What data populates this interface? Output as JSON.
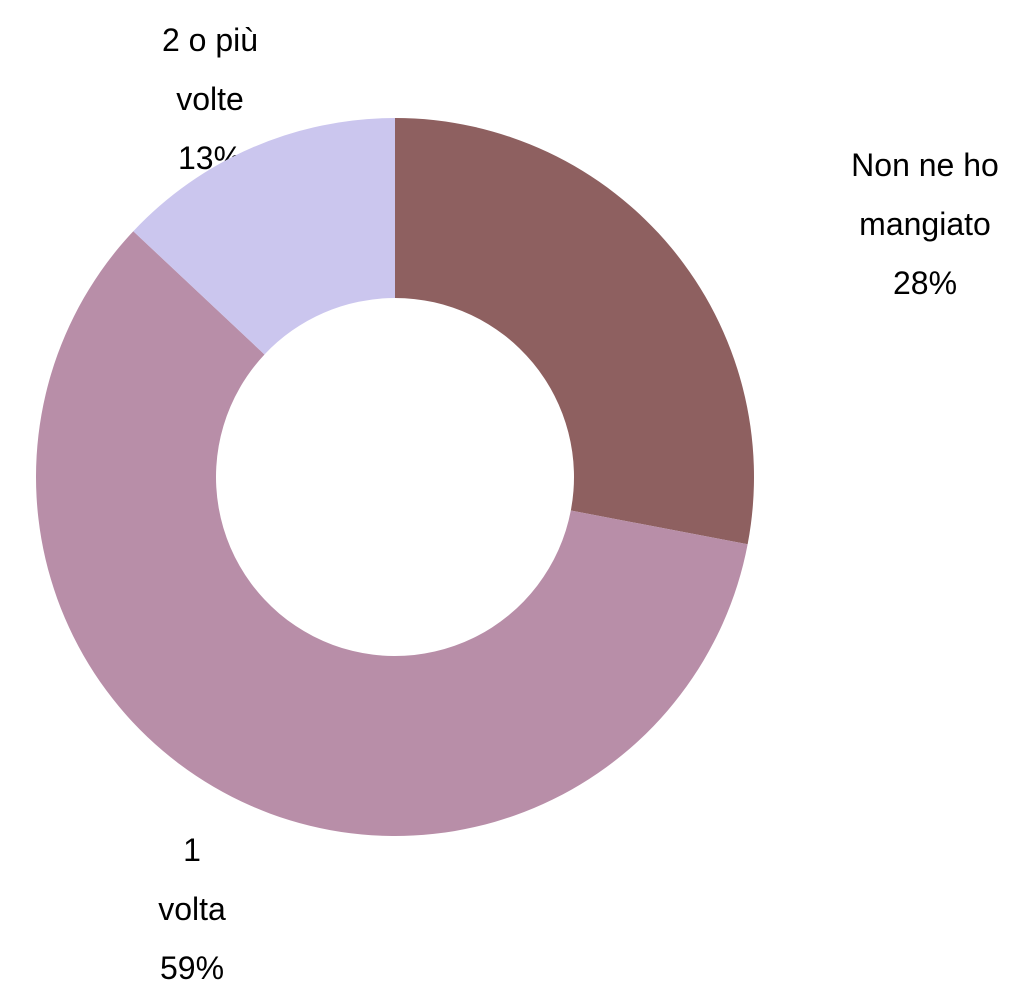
{
  "chart_data": {
    "type": "donut",
    "categories": [
      "Non ne ho mangiato",
      "1 volta",
      "2 o più volte"
    ],
    "values": [
      28,
      59,
      13
    ],
    "value_labels": [
      "28%",
      "59%",
      "13%"
    ],
    "colors": [
      "#8e6060",
      "#b88ea8",
      "#cbc6ee"
    ]
  }
}
